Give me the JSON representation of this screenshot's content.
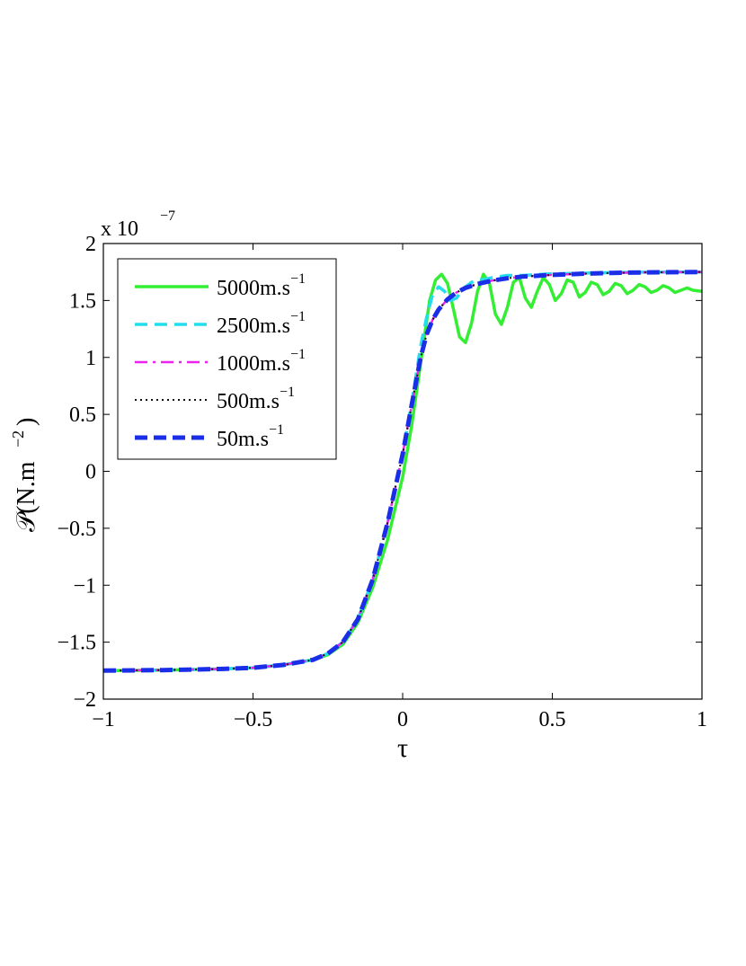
{
  "chart_data": {
    "type": "line",
    "title": "",
    "xlabel": "τ",
    "ylabel_main": "𝒫(N.m",
    "ylabel_exp": "−2",
    "ylabel_close": ")",
    "multiplier_text": "x 10",
    "multiplier_exp": "−7",
    "xlim": [
      -1,
      1
    ],
    "ylim": [
      -2,
      2
    ],
    "grid": false,
    "legend_position": "top-left",
    "x_ticks": [
      -1,
      -0.5,
      0,
      0.5,
      1
    ],
    "x_tick_labels": [
      "−1",
      "−0.5",
      "0",
      "0.5",
      "1"
    ],
    "y_ticks": [
      -2,
      -1.5,
      -1,
      -0.5,
      0,
      0.5,
      1,
      1.5,
      2
    ],
    "y_tick_labels": [
      "−2",
      "−1.5",
      "−1",
      "−0.5",
      "0",
      "0.5",
      "1",
      "1.5",
      "2"
    ],
    "series": [
      {
        "name": "5000m.s",
        "name_exp": "−1",
        "color": "#33ee33",
        "style": "solid",
        "points": [
          [
            -1,
            -1.75
          ],
          [
            -0.8,
            -1.745
          ],
          [
            -0.6,
            -1.735
          ],
          [
            -0.5,
            -1.725
          ],
          [
            -0.4,
            -1.7
          ],
          [
            -0.3,
            -1.655
          ],
          [
            -0.25,
            -1.61
          ],
          [
            -0.2,
            -1.52
          ],
          [
            -0.15,
            -1.33
          ],
          [
            -0.1,
            -1.02
          ],
          [
            -0.05,
            -0.6
          ],
          [
            0,
            -0.05
          ],
          [
            0.03,
            0.4
          ],
          [
            0.06,
            0.95
          ],
          [
            0.09,
            1.5
          ],
          [
            0.11,
            1.68
          ],
          [
            0.13,
            1.73
          ],
          [
            0.15,
            1.65
          ],
          [
            0.17,
            1.42
          ],
          [
            0.19,
            1.18
          ],
          [
            0.21,
            1.13
          ],
          [
            0.23,
            1.3
          ],
          [
            0.25,
            1.58
          ],
          [
            0.27,
            1.73
          ],
          [
            0.29,
            1.65
          ],
          [
            0.31,
            1.38
          ],
          [
            0.33,
            1.29
          ],
          [
            0.35,
            1.44
          ],
          [
            0.37,
            1.66
          ],
          [
            0.39,
            1.7
          ],
          [
            0.41,
            1.52
          ],
          [
            0.43,
            1.44
          ],
          [
            0.45,
            1.58
          ],
          [
            0.47,
            1.7
          ],
          [
            0.49,
            1.64
          ],
          [
            0.51,
            1.5
          ],
          [
            0.53,
            1.56
          ],
          [
            0.55,
            1.68
          ],
          [
            0.57,
            1.66
          ],
          [
            0.59,
            1.53
          ],
          [
            0.61,
            1.57
          ],
          [
            0.63,
            1.66
          ],
          [
            0.65,
            1.64
          ],
          [
            0.67,
            1.55
          ],
          [
            0.69,
            1.58
          ],
          [
            0.71,
            1.65
          ],
          [
            0.73,
            1.63
          ],
          [
            0.75,
            1.56
          ],
          [
            0.77,
            1.59
          ],
          [
            0.79,
            1.64
          ],
          [
            0.81,
            1.62
          ],
          [
            0.83,
            1.57
          ],
          [
            0.85,
            1.59
          ],
          [
            0.87,
            1.63
          ],
          [
            0.89,
            1.61
          ],
          [
            0.91,
            1.57
          ],
          [
            0.93,
            1.59
          ],
          [
            0.95,
            1.61
          ],
          [
            0.97,
            1.59
          ],
          [
            1,
            1.58
          ]
        ]
      },
      {
        "name": "2500m.s",
        "name_exp": "−1",
        "color": "#22ddee",
        "style": "dashed",
        "points": [
          [
            -1,
            -1.75
          ],
          [
            -0.8,
            -1.745
          ],
          [
            -0.6,
            -1.735
          ],
          [
            -0.5,
            -1.725
          ],
          [
            -0.4,
            -1.7
          ],
          [
            -0.3,
            -1.655
          ],
          [
            -0.25,
            -1.6
          ],
          [
            -0.2,
            -1.5
          ],
          [
            -0.15,
            -1.3
          ],
          [
            -0.1,
            -0.95
          ],
          [
            -0.05,
            -0.45
          ],
          [
            0,
            0.15
          ],
          [
            0.03,
            0.6
          ],
          [
            0.06,
            1.1
          ],
          [
            0.08,
            1.35
          ],
          [
            0.1,
            1.55
          ],
          [
            0.12,
            1.62
          ],
          [
            0.14,
            1.58
          ],
          [
            0.16,
            1.5
          ],
          [
            0.18,
            1.52
          ],
          [
            0.2,
            1.6
          ],
          [
            0.23,
            1.66
          ],
          [
            0.26,
            1.68
          ],
          [
            0.3,
            1.7
          ],
          [
            0.35,
            1.72
          ],
          [
            0.4,
            1.72
          ],
          [
            0.5,
            1.735
          ],
          [
            0.6,
            1.74
          ],
          [
            0.7,
            1.745
          ],
          [
            0.8,
            1.748
          ],
          [
            0.9,
            1.749
          ],
          [
            1,
            1.75
          ]
        ]
      },
      {
        "name": "1000m.s",
        "name_exp": "−1",
        "color": "#ee22ee",
        "style": "dashdot",
        "points": [
          [
            -1,
            -1.75
          ],
          [
            -0.8,
            -1.745
          ],
          [
            -0.6,
            -1.735
          ],
          [
            -0.5,
            -1.725
          ],
          [
            -0.4,
            -1.7
          ],
          [
            -0.3,
            -1.655
          ],
          [
            -0.25,
            -1.6
          ],
          [
            -0.2,
            -1.5
          ],
          [
            -0.15,
            -1.3
          ],
          [
            -0.1,
            -0.95
          ],
          [
            -0.05,
            -0.45
          ],
          [
            0,
            0.15
          ],
          [
            0.03,
            0.58
          ],
          [
            0.06,
            1.0
          ],
          [
            0.08,
            1.2
          ],
          [
            0.1,
            1.33
          ],
          [
            0.12,
            1.42
          ],
          [
            0.15,
            1.51
          ],
          [
            0.18,
            1.57
          ],
          [
            0.21,
            1.61
          ],
          [
            0.25,
            1.645
          ],
          [
            0.3,
            1.675
          ],
          [
            0.35,
            1.695
          ],
          [
            0.4,
            1.71
          ],
          [
            0.5,
            1.725
          ],
          [
            0.6,
            1.735
          ],
          [
            0.7,
            1.742
          ],
          [
            0.8,
            1.746
          ],
          [
            0.9,
            1.748
          ],
          [
            1,
            1.75
          ]
        ]
      },
      {
        "name": "500m.s",
        "name_exp": "−1",
        "color": "#111111",
        "style": "dotted",
        "points": [
          [
            -1,
            -1.75
          ],
          [
            -0.8,
            -1.745
          ],
          [
            -0.6,
            -1.735
          ],
          [
            -0.5,
            -1.725
          ],
          [
            -0.4,
            -1.7
          ],
          [
            -0.3,
            -1.655
          ],
          [
            -0.25,
            -1.6
          ],
          [
            -0.2,
            -1.5
          ],
          [
            -0.15,
            -1.3
          ],
          [
            -0.1,
            -0.95
          ],
          [
            -0.05,
            -0.45
          ],
          [
            0,
            0.15
          ],
          [
            0.03,
            0.58
          ],
          [
            0.06,
            1.0
          ],
          [
            0.08,
            1.2
          ],
          [
            0.1,
            1.33
          ],
          [
            0.12,
            1.42
          ],
          [
            0.15,
            1.51
          ],
          [
            0.18,
            1.57
          ],
          [
            0.21,
            1.61
          ],
          [
            0.25,
            1.645
          ],
          [
            0.3,
            1.675
          ],
          [
            0.35,
            1.695
          ],
          [
            0.4,
            1.71
          ],
          [
            0.5,
            1.725
          ],
          [
            0.6,
            1.735
          ],
          [
            0.7,
            1.742
          ],
          [
            0.8,
            1.746
          ],
          [
            0.9,
            1.748
          ],
          [
            1,
            1.75
          ]
        ]
      },
      {
        "name": "50m.s",
        "name_exp": "−1",
        "color": "#1a2ee8",
        "style": "bold-dashed",
        "points": [
          [
            -1,
            -1.75
          ],
          [
            -0.8,
            -1.745
          ],
          [
            -0.6,
            -1.735
          ],
          [
            -0.5,
            -1.725
          ],
          [
            -0.4,
            -1.7
          ],
          [
            -0.3,
            -1.655
          ],
          [
            -0.25,
            -1.6
          ],
          [
            -0.2,
            -1.5
          ],
          [
            -0.15,
            -1.3
          ],
          [
            -0.1,
            -0.95
          ],
          [
            -0.05,
            -0.45
          ],
          [
            0,
            0.15
          ],
          [
            0.03,
            0.58
          ],
          [
            0.06,
            1.0
          ],
          [
            0.08,
            1.2
          ],
          [
            0.1,
            1.33
          ],
          [
            0.12,
            1.42
          ],
          [
            0.15,
            1.51
          ],
          [
            0.18,
            1.57
          ],
          [
            0.21,
            1.61
          ],
          [
            0.25,
            1.645
          ],
          [
            0.3,
            1.675
          ],
          [
            0.35,
            1.695
          ],
          [
            0.4,
            1.71
          ],
          [
            0.5,
            1.725
          ],
          [
            0.6,
            1.735
          ],
          [
            0.7,
            1.742
          ],
          [
            0.8,
            1.746
          ],
          [
            0.9,
            1.748
          ],
          [
            1,
            1.75
          ]
        ]
      }
    ]
  }
}
